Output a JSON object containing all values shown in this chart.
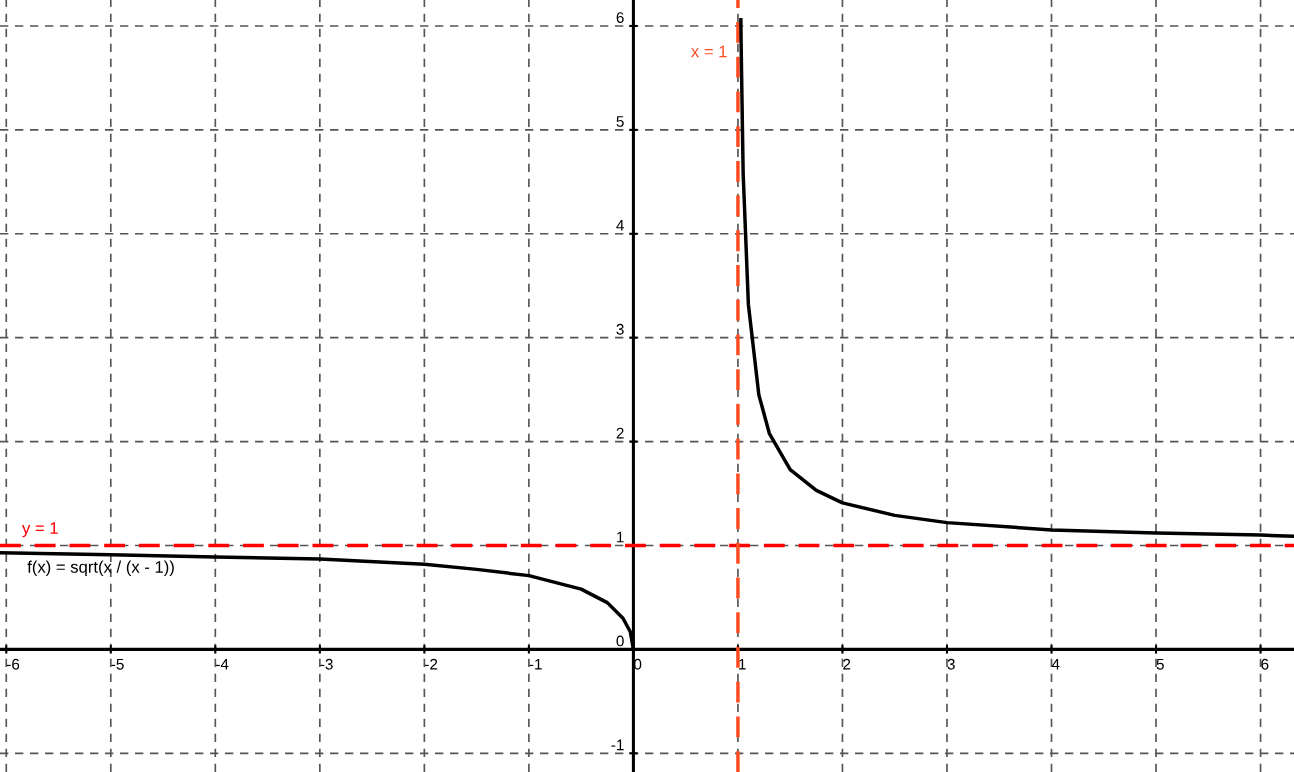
{
  "chart_data": {
    "type": "line",
    "x": [
      -6.06,
      -5,
      -4,
      -3,
      -2,
      -1.5,
      -1,
      -0.5,
      -0.25,
      -0.1,
      -0.03,
      0,
      0.5,
      1.028,
      1.03,
      1.05,
      1.1,
      1.2,
      1.3,
      1.5,
      1.75,
      2,
      2.5,
      3,
      4,
      5,
      6,
      6.32
    ],
    "series": [
      {
        "name": "f(x) = sqrt(x / (x - 1))",
        "color": "#000000",
        "values": [
          0.93,
          0.91,
          0.89,
          0.87,
          0.82,
          0.77,
          0.71,
          0.58,
          0.45,
          0.3,
          0.17,
          0,
          null,
          6.06,
          5.86,
          4.58,
          3.32,
          2.45,
          2.08,
          1.73,
          1.53,
          1.41,
          1.29,
          1.22,
          1.15,
          1.12,
          1.1,
          1.09
        ]
      }
    ],
    "xlim": [
      -6.06,
      6.32
    ],
    "ylim": [
      -1.18,
      6.25
    ],
    "xticks": [
      -6,
      -5,
      -4,
      -3,
      -2,
      -1,
      0,
      1,
      2,
      3,
      4,
      5,
      6
    ],
    "yticks": [
      -1,
      0,
      1,
      2,
      3,
      4,
      5,
      6
    ],
    "grid": true,
    "marker": "none",
    "line_style": "solid",
    "ref_lines": [
      {
        "axis": "y",
        "value": 1,
        "label": "y = 1",
        "color": "#ff0000",
        "line_style": "dashed"
      },
      {
        "axis": "x",
        "value": 1,
        "label": "x = 1",
        "color": "#ff4b1f",
        "line_style": "dashed"
      }
    ]
  }
}
